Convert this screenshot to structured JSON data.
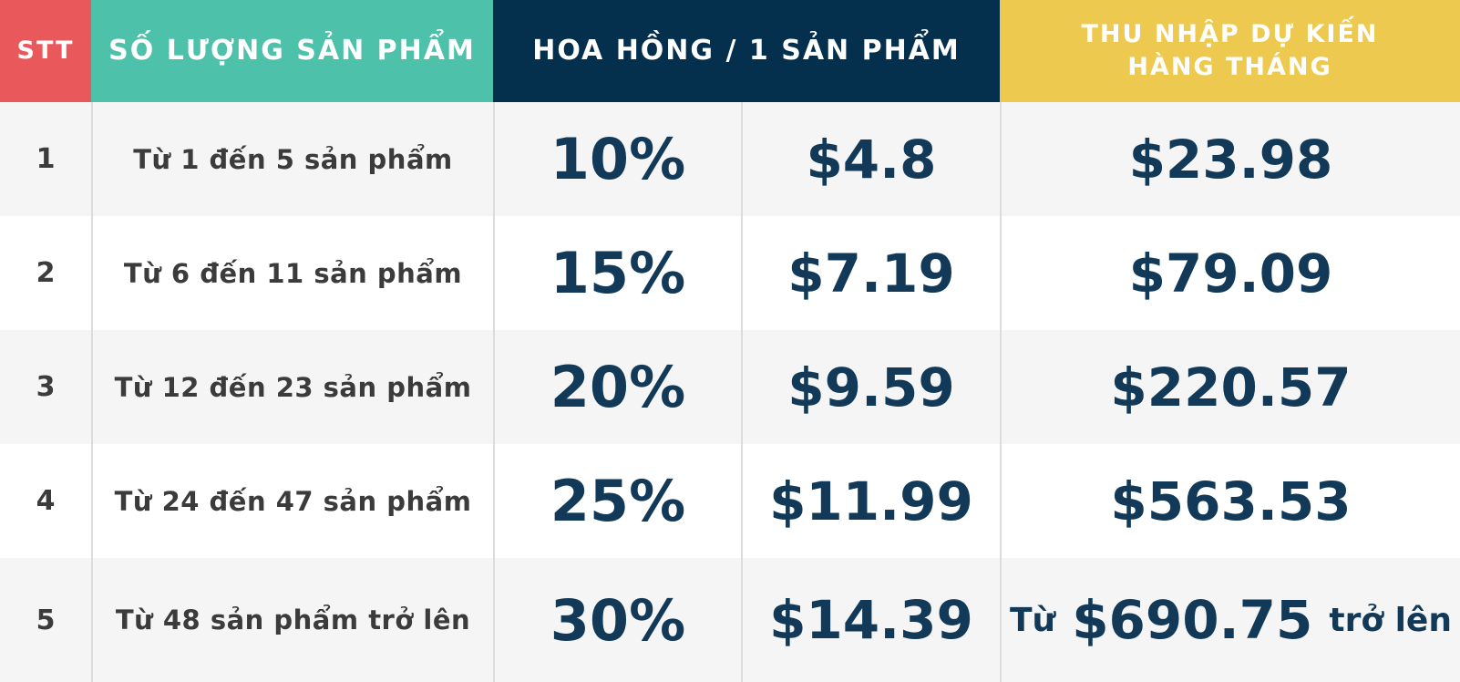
{
  "table": {
    "headers": {
      "stt": "STT",
      "quantity": "SỐ LƯỢNG SẢN PHẨM",
      "commission": "HOA HỒNG / 1 SẢN PHẨM",
      "income_line1": "THU NHẬP DỰ KIẾN",
      "income_line2": "HÀNG THÁNG"
    },
    "rows": [
      {
        "stt": "1",
        "quantity": "Từ 1 đến 5 sản phẩm",
        "percent": "10%",
        "amount": "$4.8",
        "income_prefix": "",
        "income_value": "$23.98",
        "income_suffix": ""
      },
      {
        "stt": "2",
        "quantity": "Từ 6 đến 11 sản phẩm",
        "percent": "15%",
        "amount": "$7.19",
        "income_prefix": "",
        "income_value": "$79.09",
        "income_suffix": ""
      },
      {
        "stt": "3",
        "quantity": "Từ 12 đến 23 sản phẩm",
        "percent": "20%",
        "amount": "$9.59",
        "income_prefix": "",
        "income_value": "$220.57",
        "income_suffix": ""
      },
      {
        "stt": "4",
        "quantity": "Từ 24 đến 47 sản phẩm",
        "percent": "25%",
        "amount": "$11.99",
        "income_prefix": "",
        "income_value": "$563.53",
        "income_suffix": ""
      },
      {
        "stt": "5",
        "quantity": "Từ 48 sản phẩm trở lên",
        "percent": "30%",
        "amount": "$14.39",
        "income_prefix": "Từ",
        "income_value": "$690.75",
        "income_suffix": "trở lên"
      }
    ]
  },
  "colors": {
    "stt_header": "#E9585B",
    "quantity_header": "#4DC1A9",
    "commission_header": "#04304E",
    "income_header": "#EEC94F",
    "value_text": "#123A58",
    "label_text": "#3B3B3B",
    "row_alt_bg": "#F5F5F6",
    "row_bg": "#FFFFFF",
    "divider": "#DCDCDC"
  },
  "chart_data": {
    "type": "table",
    "title": "",
    "columns": [
      "STT",
      "SỐ LƯỢNG SẢN PHẨM",
      "HOA HỒNG / 1 SẢN PHẨM (%)",
      "HOA HỒNG / 1 SẢN PHẨM ($)",
      "THU NHẬP DỰ KIẾN HÀNG THÁNG"
    ],
    "rows": [
      [
        "1",
        "Từ 1 đến 5 sản phẩm",
        "10%",
        "$4.8",
        "$23.98"
      ],
      [
        "2",
        "Từ 6 đến 11 sản phẩm",
        "15%",
        "$7.19",
        "$79.09"
      ],
      [
        "3",
        "Từ 12 đến 23 sản phẩm",
        "20%",
        "$9.59",
        "$220.57"
      ],
      [
        "4",
        "Từ 24 đến 47 sản phẩm",
        "25%",
        "$11.99",
        "$563.53"
      ],
      [
        "5",
        "Từ 48 sản phẩm trở lên",
        "30%",
        "$14.39",
        "Từ $690.75 trở lên"
      ]
    ]
  }
}
